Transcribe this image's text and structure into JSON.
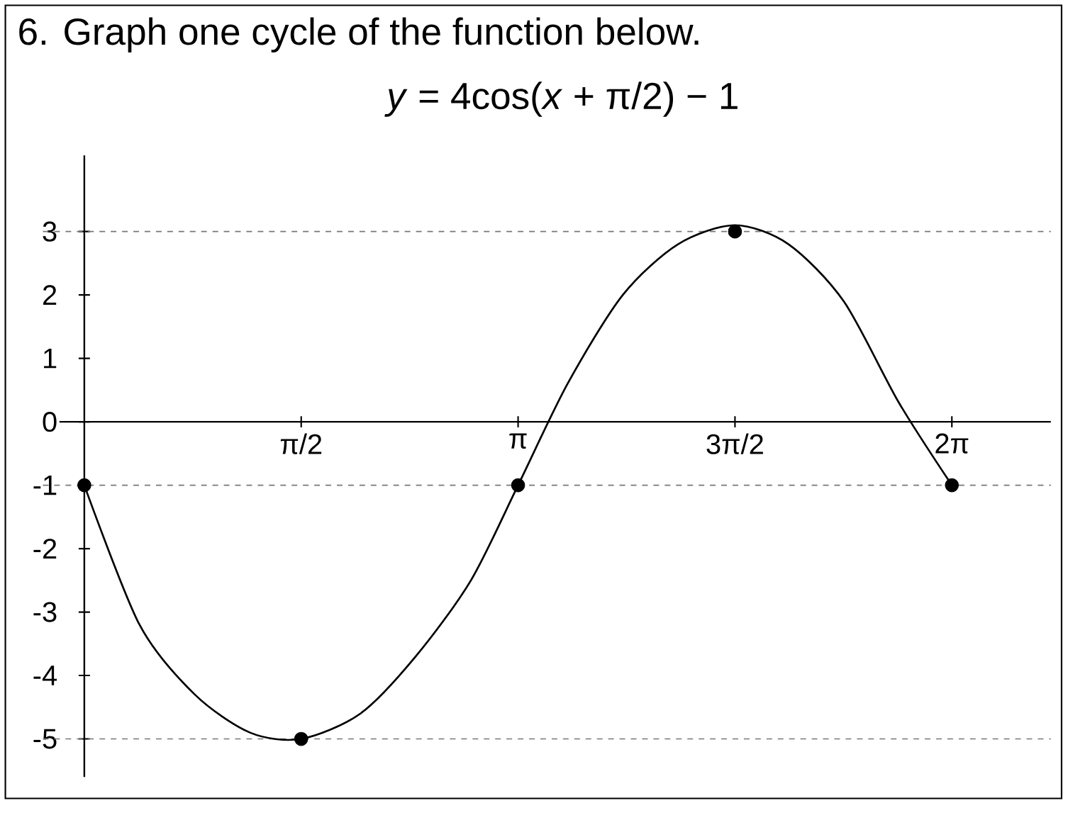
{
  "chart_data": {
    "type": "line",
    "title": "6. Graph one cycle of the function below.",
    "subtitle": "*y* = 4cos(*x* + π/2) − 1",
    "series": [
      {
        "color": "#000000",
        "x": [
          0,
          0.4,
          0.8,
          1.2,
          1.5708,
          2.0,
          2.4,
          2.8,
          3.1416,
          3.5,
          3.9,
          4.3,
          4.7124,
          5.1,
          5.5,
          5.9,
          6.2832
        ],
        "values": [
          -1,
          -3.2,
          -4.3,
          -4.9,
          -5,
          -4.6,
          -3.7,
          -2.5,
          -1,
          0.6,
          2.0,
          2.8,
          3.1,
          2.8,
          1.9,
          0.3,
          -1
        ]
      },
      {
        "type": "scatter",
        "color": "#000000",
        "x": [
          0,
          1.5708,
          3.1416,
          4.7124,
          6.2832
        ],
        "values": [
          -1,
          -5,
          -1,
          3,
          -1
        ]
      }
    ],
    "xlim": [
      -0.3,
      7.0
    ],
    "ylim": [
      -5.6,
      4.2
    ],
    "xticks": [
      {
        "value": 1.5708,
        "label": "π/2"
      },
      {
        "value": 3.1416,
        "label": "π"
      },
      {
        "value": 4.7124,
        "label": "3π/2"
      },
      {
        "value": 6.2832,
        "label": "2π"
      }
    ],
    "yticks": [
      -5,
      -4,
      -3,
      -2,
      -1,
      0,
      1,
      2,
      3
    ],
    "ref_lines": [
      {
        "axis": "y",
        "value": 3,
        "color": "#777777",
        "line_style": "dashed"
      },
      {
        "axis": "y",
        "value": -1,
        "color": "#777777",
        "line_style": "dashed"
      },
      {
        "axis": "y",
        "value": -5,
        "color": "#777777",
        "line_style": "dashed"
      }
    ],
    "grid": false
  }
}
